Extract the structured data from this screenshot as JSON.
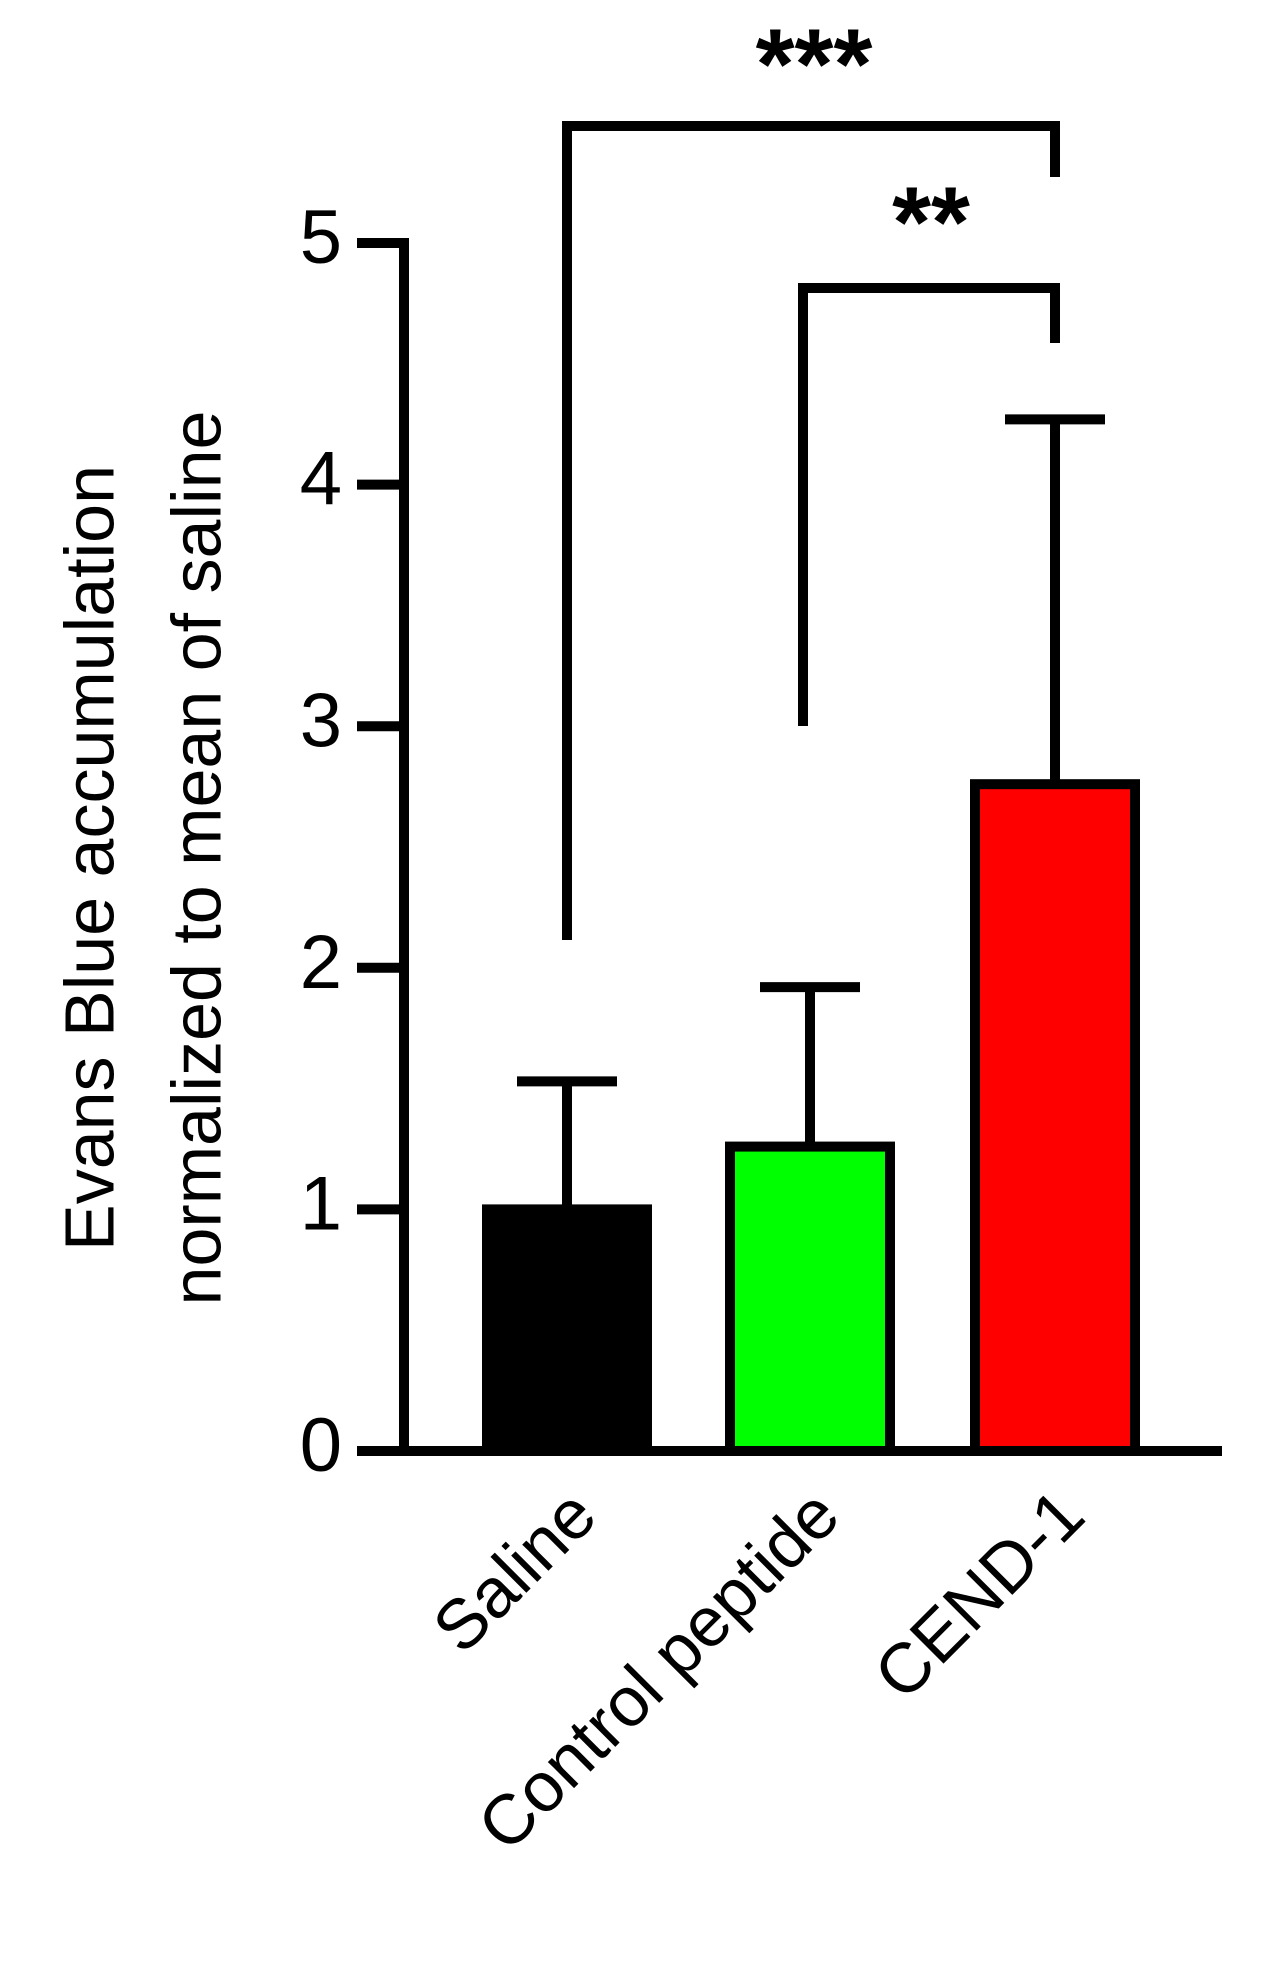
{
  "chart_data": {
    "type": "bar",
    "y_label": [
      "Evans Blue accumulation",
      "normalized to mean of saline"
    ],
    "categories": [
      "Saline",
      "Control peptide",
      "CEND-1"
    ],
    "values": [
      1.0,
      1.26,
      2.76
    ],
    "errors": [
      0.53,
      0.66,
      1.51
    ],
    "colors": [
      "#000000",
      "#00ff00",
      "#ff0000"
    ],
    "ylim": [
      0,
      5
    ],
    "yticks": [
      0,
      1,
      2,
      3,
      4,
      5
    ],
    "annotations": [
      "***",
      "**"
    ]
  }
}
